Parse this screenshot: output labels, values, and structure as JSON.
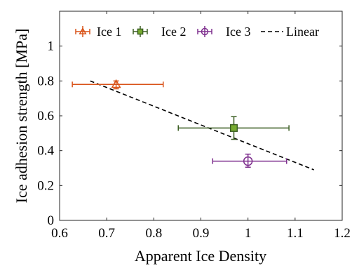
{
  "chart_data": {
    "type": "scatter",
    "title": "",
    "xlabel": "Apparent Ice Density",
    "ylabel": "Ice adhesion strength [MPa]",
    "xlim": [
      0.6,
      1.2
    ],
    "ylim": [
      0,
      1.2
    ],
    "xticks": [
      "0.6",
      "0.7",
      "0.8",
      "0.9",
      "1",
      "1.1",
      "1.2"
    ],
    "yticks": [
      "0",
      "0.2",
      "0.4",
      "0.6",
      "0.8",
      "1"
    ],
    "grid": false,
    "legend_position": "top",
    "series": [
      {
        "name": "Ice 1",
        "marker": "triangle",
        "color": "#d95319",
        "x": 0.72,
        "y": 0.78,
        "x_err": [
          0.627,
          0.82
        ],
        "y_err": [
          0.755,
          0.8
        ]
      },
      {
        "name": "Ice 2",
        "marker": "square",
        "color": "#3b5e22",
        "marker_fill": "#77ac30",
        "x": 0.97,
        "y": 0.53,
        "x_err": [
          0.852,
          1.087
        ],
        "y_err": [
          0.465,
          0.595
        ]
      },
      {
        "name": "Ice 3",
        "marker": "circle",
        "color": "#7e2f8e",
        "x": 1.0,
        "y": 0.34,
        "x_err": [
          0.925,
          1.082
        ],
        "y_err": [
          0.305,
          0.38
        ]
      }
    ],
    "fit": {
      "name": "Linear",
      "style": "dashed",
      "color": "#000000",
      "x": [
        0.665,
        1.14
      ],
      "y": [
        0.8,
        0.29
      ]
    }
  }
}
